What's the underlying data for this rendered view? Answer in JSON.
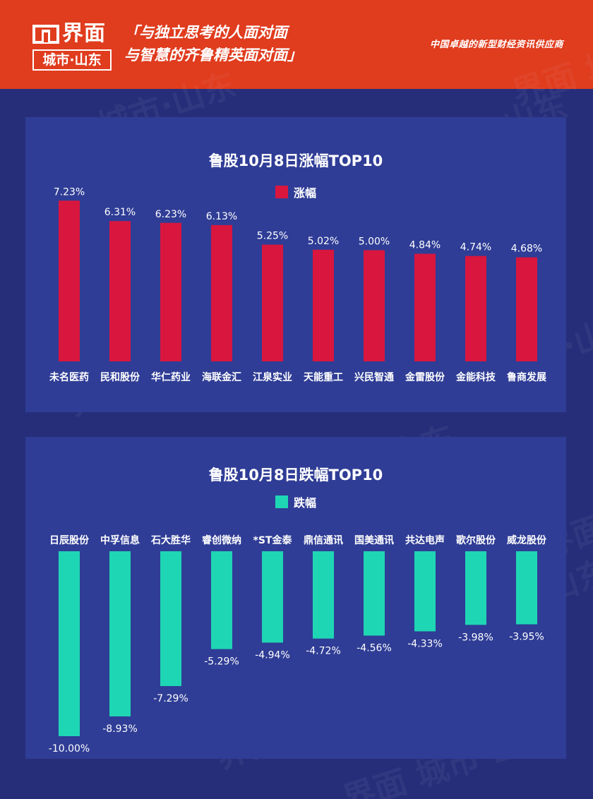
{
  "header": {
    "logo_word": "界面",
    "logo_sub": "城市·山东",
    "slogan_line1": "「与独立思考的人面对面",
    "slogan_line2": "与智慧的齐鲁精英面对面」",
    "tagline": "中国卓越的新型财经资讯供应商",
    "bg_color": "#e03c1e"
  },
  "watermark_text": "界面 城市·山东",
  "chart_data": [
    {
      "type": "bar",
      "title": "鲁股10月8日涨幅TOP10",
      "series": [
        {
          "name": "涨幅",
          "color": "#d9163e",
          "values": [
            7.23,
            6.31,
            6.23,
            6.13,
            5.25,
            5.02,
            5.0,
            4.84,
            4.74,
            4.68
          ],
          "labels": [
            "7.23%",
            "6.31%",
            "6.23%",
            "6.13%",
            "5.25%",
            "5.02%",
            "5.00%",
            "4.84%",
            "4.74%",
            "4.68%"
          ]
        }
      ],
      "categories": [
        "未名医药",
        "民和股份",
        "华仁药业",
        "海联金汇",
        "江泉实业",
        "天能重工",
        "兴民智通",
        "金雷股份",
        "金能科技",
        "鲁商发展"
      ],
      "ylim": [
        0,
        8
      ],
      "grid": false,
      "legend_position": "top-center"
    },
    {
      "type": "bar",
      "title": "鲁股10月8日跌幅TOP10",
      "series": [
        {
          "name": "跌幅",
          "color": "#1fd6b4",
          "values": [
            -10.0,
            -8.93,
            -7.29,
            -5.29,
            -4.94,
            -4.72,
            -4.56,
            -4.33,
            -3.98,
            -3.95
          ],
          "labels": [
            "-10.00%",
            "-8.93%",
            "-7.29%",
            "-5.29%",
            "-4.94%",
            "-4.72%",
            "-4.56%",
            "-4.33%",
            "-3.98%",
            "-3.95%"
          ]
        }
      ],
      "categories": [
        "日辰股份",
        "中孚信息",
        "石大胜华",
        "睿创微纳",
        "*ST金泰",
        "鼎信通讯",
        "国美通讯",
        "共达电声",
        "歌尔股份",
        "威龙股份"
      ],
      "ylim": [
        -10,
        0
      ],
      "grid": false,
      "legend_position": "top-center"
    }
  ]
}
